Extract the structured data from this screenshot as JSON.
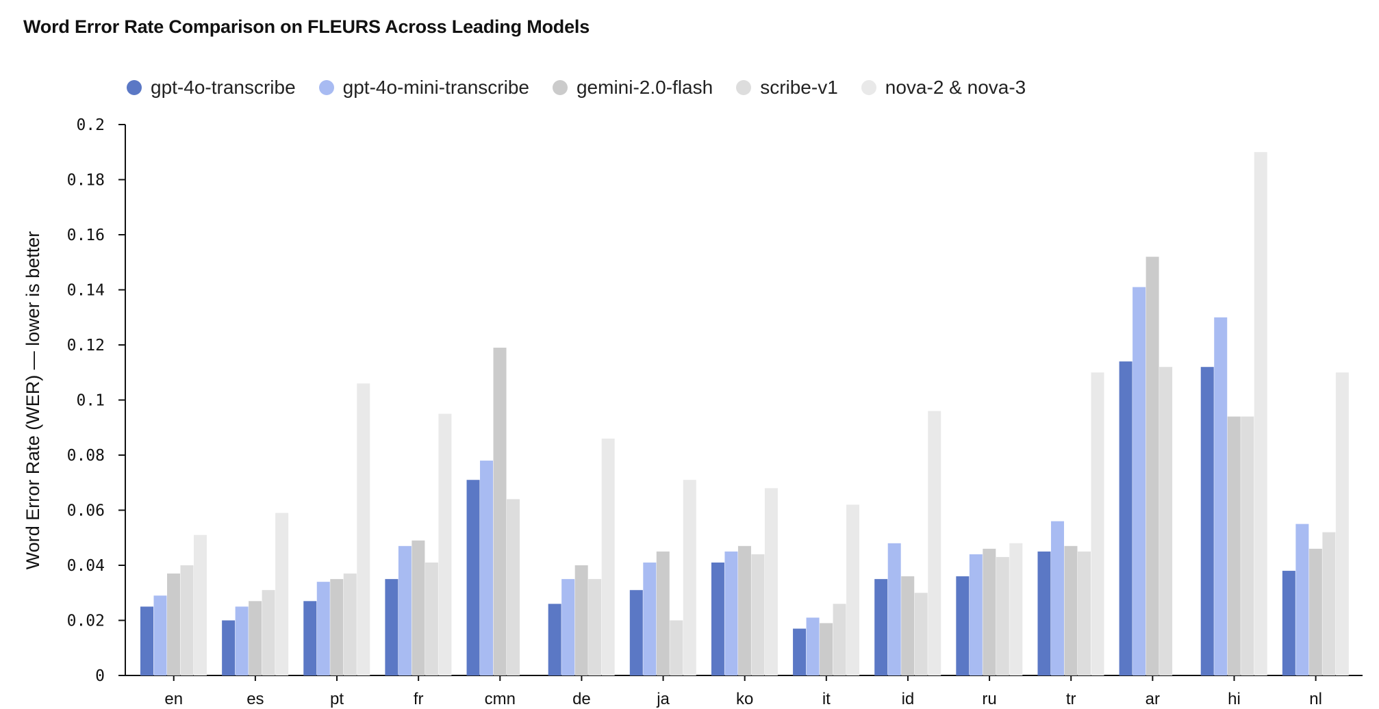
{
  "chart_data": {
    "type": "bar",
    "title": "Word Error Rate Comparison on FLEURS Across Leading Models",
    "ylabel": "Word Error Rate (WER) — lower is better",
    "xlabel": "",
    "ylim": [
      0,
      0.2
    ],
    "yticks": [
      "0",
      "0.02",
      "0.04",
      "0.06",
      "0.08",
      "0.1",
      "0.12",
      "0.14",
      "0.16",
      "0.18",
      "0.2"
    ],
    "grid": false,
    "legend_position": "top-left",
    "categories": [
      "en",
      "es",
      "pt",
      "fr",
      "cmn",
      "de",
      "ja",
      "ko",
      "it",
      "id",
      "ru",
      "tr",
      "ar",
      "hi",
      "nl"
    ],
    "series": [
      {
        "name": "gpt-4o-transcribe",
        "color": "#5B78C5",
        "values": [
          0.025,
          0.02,
          0.027,
          0.035,
          0.071,
          0.026,
          0.031,
          0.041,
          0.017,
          0.035,
          0.036,
          0.045,
          0.114,
          0.112,
          0.038
        ]
      },
      {
        "name": "gpt-4o-mini-transcribe",
        "color": "#A8BBF2",
        "values": [
          0.029,
          0.025,
          0.034,
          0.047,
          0.078,
          0.035,
          0.041,
          0.045,
          0.021,
          0.048,
          0.044,
          0.056,
          0.141,
          0.13,
          0.055
        ]
      },
      {
        "name": "gemini-2.0-flash",
        "color": "#CBCBCB",
        "values": [
          0.037,
          0.027,
          0.035,
          0.049,
          0.119,
          0.04,
          0.045,
          0.047,
          0.019,
          0.036,
          0.046,
          0.047,
          0.152,
          0.094,
          0.046
        ]
      },
      {
        "name": "scribe-v1",
        "color": "#DDDDDD",
        "values": [
          0.04,
          0.031,
          0.037,
          0.041,
          0.064,
          0.035,
          0.02,
          0.044,
          0.026,
          0.03,
          0.043,
          0.045,
          0.112,
          0.094,
          0.052
        ]
      },
      {
        "name": "nova-2 & nova-3",
        "color": "#E9E9E9",
        "values": [
          0.051,
          0.059,
          0.106,
          0.095,
          null,
          0.086,
          0.071,
          0.068,
          0.062,
          0.096,
          0.048,
          0.11,
          null,
          0.19,
          0.11
        ]
      }
    ]
  }
}
